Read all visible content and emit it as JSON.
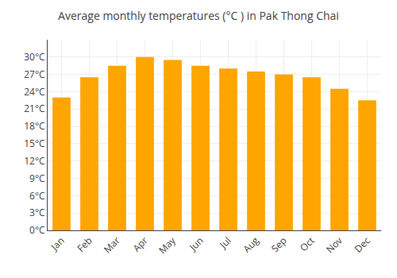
{
  "chart_data": {
    "type": "bar",
    "title": "Average monthly temperatures (°C ) in Pak Thong Chai",
    "categories": [
      "Jan",
      "Feb",
      "Mar",
      "Apr",
      "May",
      "Jun",
      "Jul",
      "Aug",
      "Sep",
      "Oct",
      "Nov",
      "Dec"
    ],
    "values": [
      23.0,
      26.5,
      28.5,
      30.0,
      29.5,
      28.5,
      28.0,
      27.5,
      27.0,
      26.5,
      24.5,
      22.5
    ],
    "color": "#FFA500",
    "ylim": [
      0,
      33
    ],
    "yticks": [
      {
        "value": 0,
        "label": "0°C"
      },
      {
        "value": 3,
        "label": "3°C"
      },
      {
        "value": 6,
        "label": "6°C"
      },
      {
        "value": 9,
        "label": "9°C"
      },
      {
        "value": 12,
        "label": "12°C"
      },
      {
        "value": 15,
        "label": "15°C"
      },
      {
        "value": 18,
        "label": "18°C"
      },
      {
        "value": 21,
        "label": "21°C"
      },
      {
        "value": 24,
        "label": "24°C"
      },
      {
        "value": 27,
        "label": "27°C"
      },
      {
        "value": 30,
        "label": "30°C"
      }
    ],
    "grid": true
  }
}
